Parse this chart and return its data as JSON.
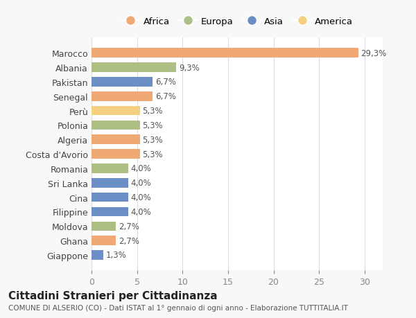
{
  "countries": [
    "Marocco",
    "Albania",
    "Pakistan",
    "Senegal",
    "Perù",
    "Polonia",
    "Algeria",
    "Costa d'Avorio",
    "Romania",
    "Sri Lanka",
    "Cina",
    "Filippine",
    "Moldova",
    "Ghana",
    "Giappone"
  ],
  "values": [
    29.3,
    9.3,
    6.7,
    6.7,
    5.3,
    5.3,
    5.3,
    5.3,
    4.0,
    4.0,
    4.0,
    4.0,
    2.7,
    2.7,
    1.3
  ],
  "labels": [
    "29,3%",
    "9,3%",
    "6,7%",
    "6,7%",
    "5,3%",
    "5,3%",
    "5,3%",
    "5,3%",
    "4,0%",
    "4,0%",
    "4,0%",
    "4,0%",
    "2,7%",
    "2,7%",
    "1,3%"
  ],
  "continents": [
    "Africa",
    "Europa",
    "Asia",
    "Africa",
    "America",
    "Europa",
    "Africa",
    "Africa",
    "Europa",
    "Asia",
    "Asia",
    "Asia",
    "Europa",
    "Africa",
    "Asia"
  ],
  "colors": {
    "Africa": "#F0A875",
    "Europa": "#ADBF85",
    "Asia": "#6B8FC4",
    "America": "#F5D080"
  },
  "legend_order": [
    "Africa",
    "Europa",
    "Asia",
    "America"
  ],
  "xlim": [
    0,
    32
  ],
  "xticks": [
    0,
    5,
    10,
    15,
    20,
    25,
    30
  ],
  "title_main": "Cittadini Stranieri per Cittadinanza",
  "title_sub": "COMUNE DI ALSERIO (CO) - Dati ISTAT al 1° gennaio di ogni anno - Elaborazione TUTTITALIA.IT",
  "background_color": "#F8F8F8",
  "bar_background": "#FFFFFF",
  "grid_color": "#DDDDDD"
}
